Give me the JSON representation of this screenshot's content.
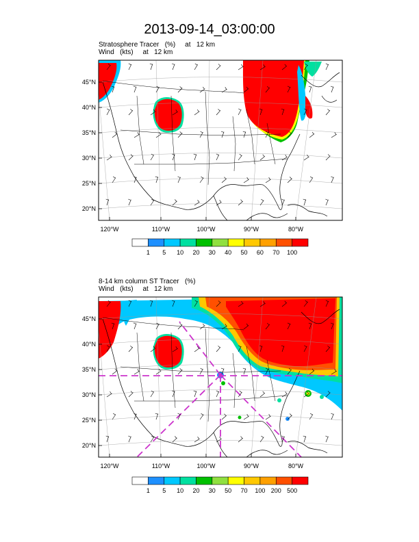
{
  "title": "2013-09-14_03:00:00",
  "panels": [
    {
      "subtitle_line1": "Stratosphere Tracer   (%)     at   12 km",
      "subtitle_line2": "Wind   (kts)     at   12 km",
      "lat_labels": [
        "45°N",
        "40°N",
        "35°N",
        "30°N",
        "25°N",
        "20°N"
      ],
      "lon_labels": [
        "120°W",
        "110°W",
        "100°W",
        "90°W",
        "80°W"
      ],
      "colorbar": {
        "colors": [
          "#ffffff",
          "#1e90ff",
          "#00c8ff",
          "#00e0a0",
          "#00c000",
          "#90e040",
          "#ffff00",
          "#ffc800",
          "#ffa000",
          "#ff5000",
          "#ff0000"
        ],
        "labels": [
          "1",
          "5",
          "10",
          "20",
          "30",
          "40",
          "50",
          "60",
          "70",
          "100"
        ]
      }
    },
    {
      "subtitle_line1": "8-14 km column ST Tracer   (%)",
      "subtitle_line2": "Wind   (kts)     at   12 km",
      "lat_labels": [
        "45°N",
        "40°N",
        "35°N",
        "30°N",
        "25°N",
        "20°N"
      ],
      "lon_labels": [
        "120°W",
        "110°W",
        "100°W",
        "90°W",
        "80°W"
      ],
      "colorbar": {
        "colors": [
          "#ffffff",
          "#1e90ff",
          "#00c8ff",
          "#00e0a0",
          "#00c000",
          "#90e040",
          "#ffff00",
          "#ffc800",
          "#ffa000",
          "#ff5000",
          "#ff0000"
        ],
        "labels": [
          "1",
          "5",
          "10",
          "20",
          "30",
          "50",
          "70",
          "100",
          "200",
          "500"
        ]
      }
    }
  ],
  "colors": {
    "tracer_high": "#ff0000",
    "flight_track": "#cc33cc",
    "map_lines": "#000000"
  }
}
